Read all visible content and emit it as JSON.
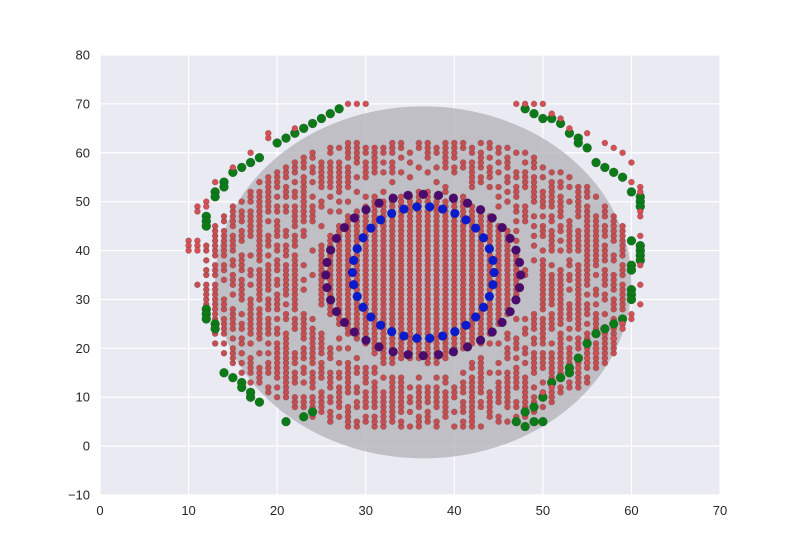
{
  "chart_data": {
    "type": "scatter",
    "title": "",
    "xlabel": "",
    "ylabel": "",
    "xlim": [
      0,
      70
    ],
    "ylim": [
      -10,
      80
    ],
    "grid": true,
    "legend": "none",
    "x_ticks": [
      0,
      10,
      20,
      30,
      40,
      50,
      60,
      70
    ],
    "y_ticks": [
      -10,
      0,
      10,
      20,
      30,
      40,
      50,
      60,
      70,
      80
    ],
    "x_tick_labels": [
      "0",
      "10",
      "20",
      "30",
      "40",
      "50",
      "60",
      "70"
    ],
    "y_tick_labels": [
      "−10",
      "0",
      "10",
      "20",
      "30",
      "40",
      "50",
      "60",
      "70",
      "80"
    ],
    "background_ellipse": {
      "center": [
        36.5,
        33.5
      ],
      "semi_axis_x": 23.5,
      "semi_axis_y": 36,
      "color": "#b0b0b6"
    },
    "series": [
      {
        "color": "#c44e52",
        "marker_size": 3,
        "description_key": "red-field",
        "region": {
          "x_range": [
            11,
            59
          ],
          "y_range": [
            4,
            62
          ],
          "step": 1,
          "outer_ellipse": {
            "center": [
              36,
              33
            ],
            "rx": 25,
            "ry": 31
          },
          "inner_ring_ellipse": {
            "center": [
              36,
              35
            ],
            "rx": 8,
            "ry": 14
          }
        }
      },
      {
        "color": "#0a1bcf",
        "marker_size": 4.5,
        "description_key": "blue-ring",
        "ellipse": {
          "center": [
            36.5,
            35.5
          ],
          "rx": 8,
          "ry": 13.5
        },
        "n_points": 34
      },
      {
        "color": "#4b0b6e",
        "marker_size": 4.5,
        "description_key": "purple-ring",
        "ellipse": {
          "center": [
            36.5,
            35
          ],
          "rx": 11,
          "ry": 16.5
        },
        "n_points": 40
      },
      {
        "color": "#0b7a17",
        "marker_size": 4.5,
        "description_key": "green-edge",
        "points": [
          [
            27,
            69
          ],
          [
            26,
            68
          ],
          [
            25,
            67
          ],
          [
            24,
            66
          ],
          [
            23,
            65
          ],
          [
            22,
            64
          ],
          [
            21,
            63
          ],
          [
            20,
            62
          ],
          [
            18,
            59
          ],
          [
            17,
            58
          ],
          [
            16,
            57
          ],
          [
            15,
            56
          ],
          [
            14,
            54
          ],
          [
            14,
            53
          ],
          [
            13,
            52
          ],
          [
            13,
            51
          ],
          [
            12,
            47
          ],
          [
            12,
            46
          ],
          [
            12,
            45
          ],
          [
            12,
            28
          ],
          [
            12,
            27
          ],
          [
            12,
            26
          ],
          [
            13,
            25
          ],
          [
            13,
            24
          ],
          [
            14,
            15
          ],
          [
            15,
            14
          ],
          [
            16,
            13
          ],
          [
            16,
            12
          ],
          [
            17,
            11
          ],
          [
            17,
            10
          ],
          [
            18,
            9
          ],
          [
            21,
            5
          ],
          [
            23,
            6
          ],
          [
            24,
            7
          ],
          [
            48,
            69
          ],
          [
            49,
            68
          ],
          [
            50,
            67
          ],
          [
            51,
            67
          ],
          [
            52,
            66
          ],
          [
            53,
            64
          ],
          [
            54,
            63
          ],
          [
            54,
            62
          ],
          [
            55,
            61
          ],
          [
            56,
            58
          ],
          [
            57,
            57
          ],
          [
            58,
            56
          ],
          [
            59,
            55
          ],
          [
            60,
            52
          ],
          [
            61,
            51
          ],
          [
            61,
            50
          ],
          [
            61,
            49
          ],
          [
            60,
            42
          ],
          [
            61,
            41
          ],
          [
            61,
            40
          ],
          [
            61,
            39
          ],
          [
            61,
            38
          ],
          [
            60,
            37
          ],
          [
            60,
            36
          ],
          [
            60,
            32
          ],
          [
            60,
            31
          ],
          [
            60,
            30
          ],
          [
            59,
            26
          ],
          [
            58,
            25
          ],
          [
            57,
            24
          ],
          [
            56,
            23
          ],
          [
            55,
            21
          ],
          [
            54,
            18
          ],
          [
            53,
            16
          ],
          [
            53,
            15
          ],
          [
            52,
            14
          ],
          [
            51,
            13
          ],
          [
            50,
            10
          ],
          [
            49,
            8
          ],
          [
            48,
            7
          ],
          [
            47,
            5
          ],
          [
            48,
            4
          ],
          [
            49,
            5
          ],
          [
            50,
            5
          ]
        ]
      },
      {
        "color": "#d45055",
        "marker_size": 3,
        "description_key": "red-outer",
        "points": [
          [
            10,
            42
          ],
          [
            10,
            41
          ],
          [
            10,
            40
          ],
          [
            11,
            42
          ],
          [
            11,
            41
          ],
          [
            11,
            40
          ],
          [
            11,
            49
          ],
          [
            11,
            48
          ],
          [
            12,
            50
          ],
          [
            12,
            49
          ],
          [
            13,
            54
          ],
          [
            15,
            57
          ],
          [
            17,
            60
          ],
          [
            19,
            63
          ],
          [
            19,
            64
          ],
          [
            22,
            65
          ],
          [
            28,
            70
          ],
          [
            29,
            70
          ],
          [
            30,
            70
          ],
          [
            47,
            70
          ],
          [
            48,
            70
          ],
          [
            49,
            70
          ],
          [
            50,
            70
          ],
          [
            51,
            68
          ],
          [
            52,
            67
          ],
          [
            53,
            65
          ],
          [
            55,
            64
          ],
          [
            57,
            62
          ],
          [
            58,
            61
          ],
          [
            59,
            60
          ],
          [
            60,
            58
          ],
          [
            60,
            54
          ],
          [
            61,
            53
          ],
          [
            61,
            52
          ],
          [
            61,
            48
          ],
          [
            61,
            47
          ],
          [
            61,
            43
          ],
          [
            61,
            37
          ],
          [
            61,
            33
          ],
          [
            61,
            29
          ],
          [
            60,
            27
          ],
          [
            60,
            26
          ],
          [
            59,
            25
          ],
          [
            59,
            24
          ],
          [
            58,
            22
          ],
          [
            56,
            20
          ],
          [
            56,
            19
          ],
          [
            55,
            18
          ],
          [
            55,
            17
          ],
          [
            54,
            16
          ],
          [
            51,
            12
          ],
          [
            50,
            11
          ]
        ]
      }
    ]
  }
}
